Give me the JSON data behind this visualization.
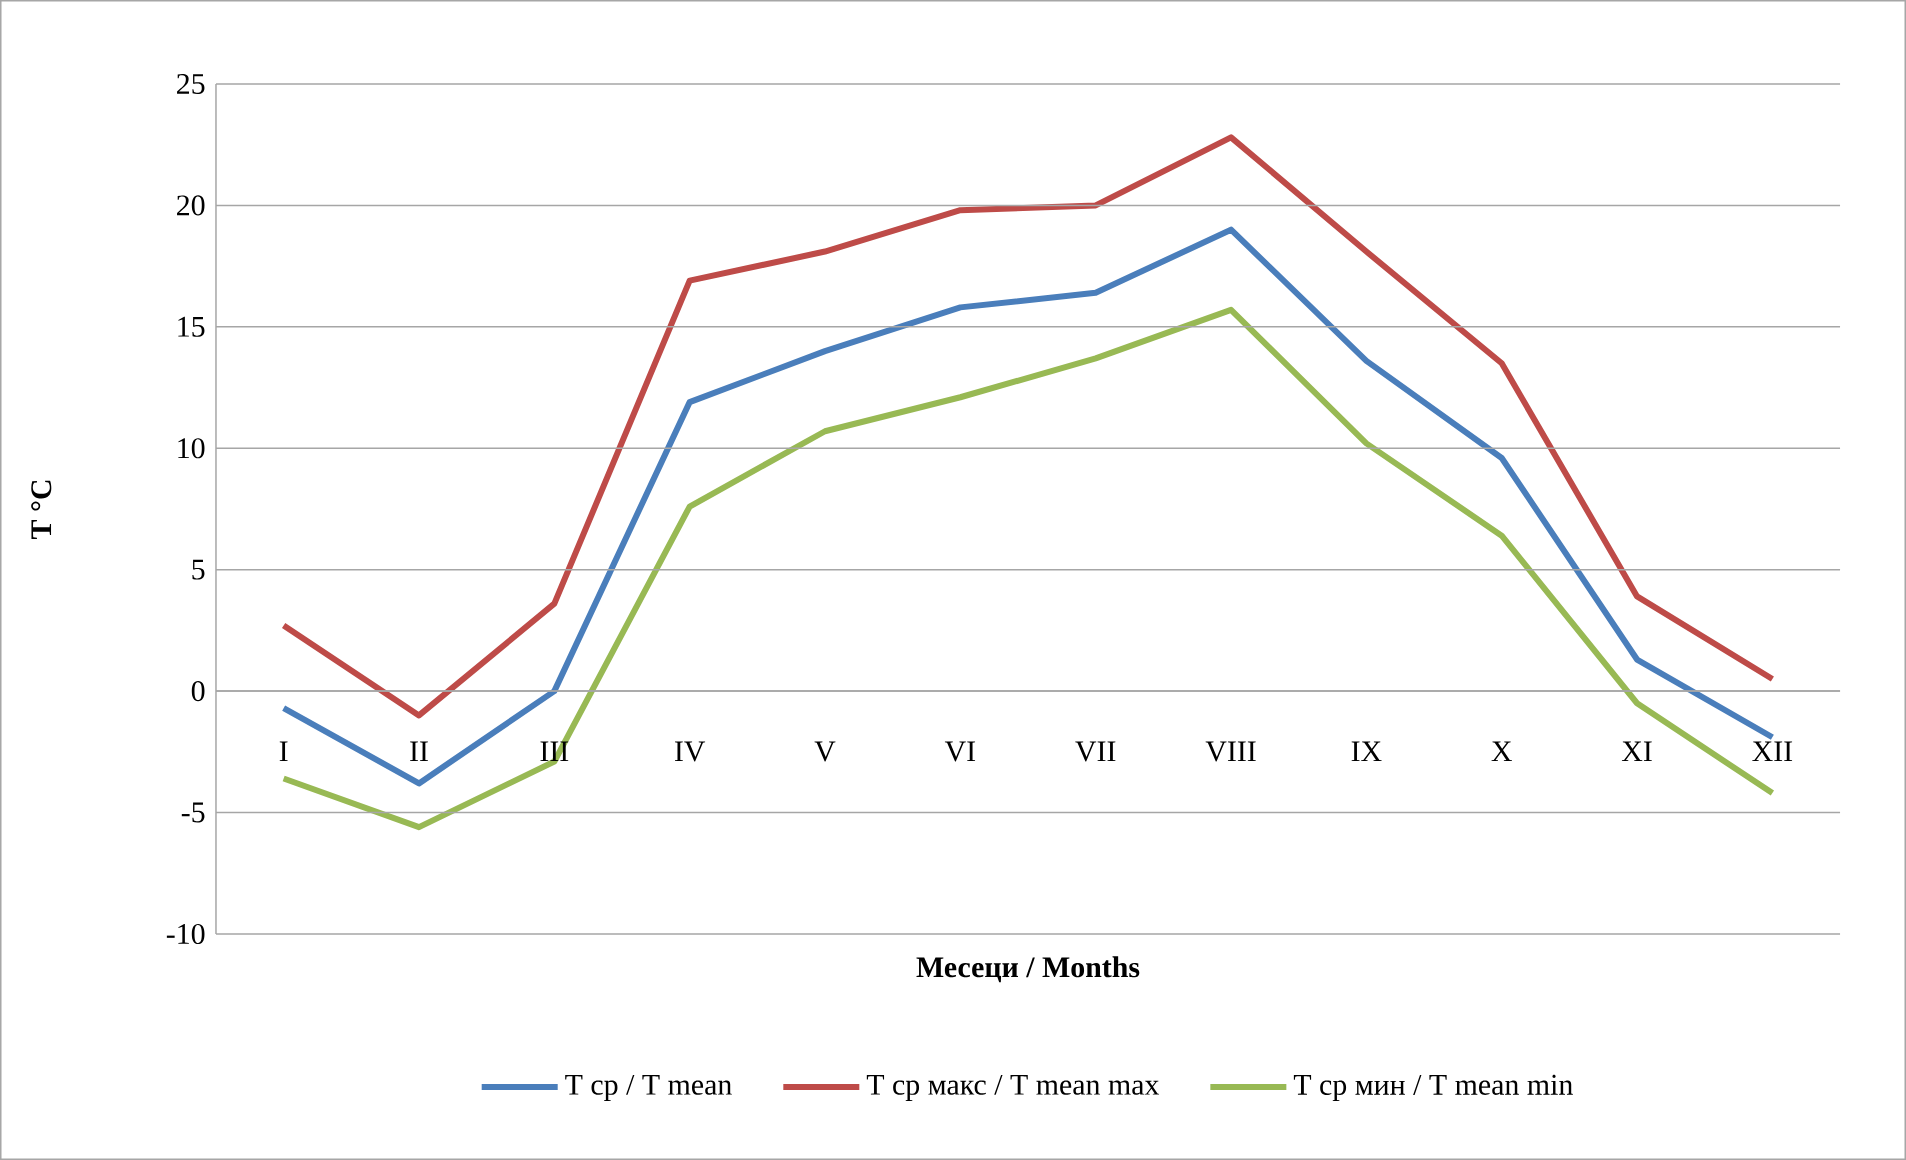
{
  "chart_data": {
    "type": "line",
    "xlabel": "Месеци / Months",
    "ylabel": "T °C",
    "categories": [
      "I",
      "II",
      "III",
      "IV",
      "V",
      "VI",
      "VII",
      "VIII",
      "IX",
      "X",
      "XI",
      "XII"
    ],
    "series": [
      {
        "name": "T ср / T mean",
        "color": "#4a7ebb",
        "values": [
          -0.7,
          -3.8,
          0.0,
          11.9,
          14.0,
          15.8,
          16.4,
          19.0,
          13.6,
          9.6,
          1.3,
          -1.9
        ]
      },
      {
        "name": "T ср макс / T mean max",
        "color": "#be4b48",
        "values": [
          2.7,
          -1.0,
          3.6,
          16.9,
          18.1,
          19.8,
          20.0,
          22.8,
          18.1,
          13.5,
          3.9,
          0.5
        ]
      },
      {
        "name": "T ср мин / T mean min",
        "color": "#98b954",
        "values": [
          -3.6,
          -5.6,
          -2.9,
          7.6,
          10.7,
          12.1,
          13.7,
          15.7,
          10.2,
          6.4,
          -0.5,
          -4.2
        ]
      }
    ],
    "ylim": [
      -10,
      25
    ],
    "yticks": [
      -10,
      -5,
      0,
      5,
      10,
      15,
      20,
      25
    ],
    "grid": "y",
    "legend": "bottom"
  }
}
